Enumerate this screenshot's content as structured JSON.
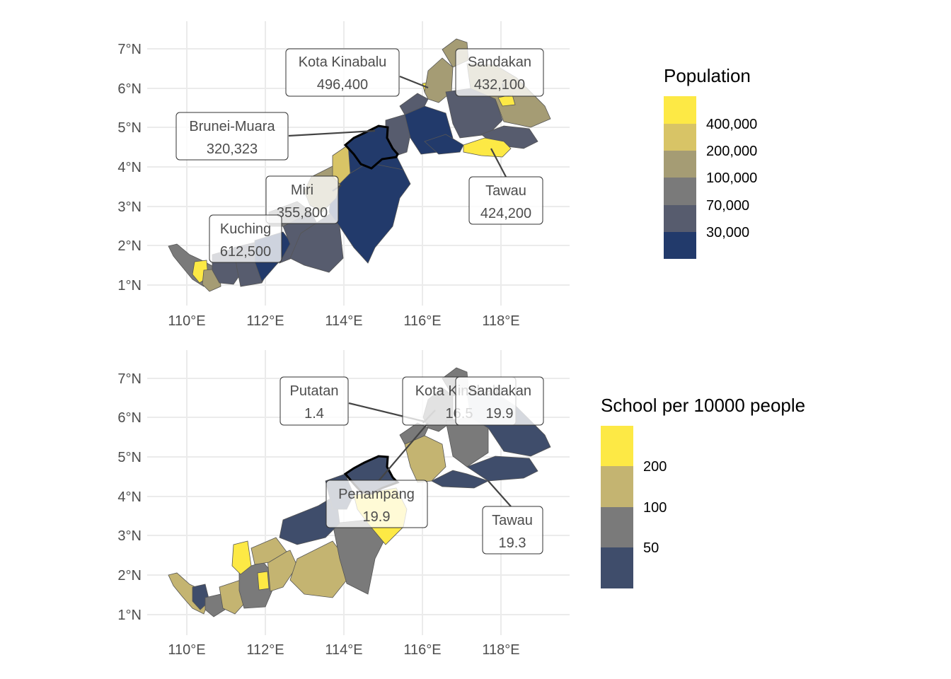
{
  "maps": [
    {
      "id": "population",
      "legend": {
        "title": "Population",
        "colors": [
          "#fde945",
          "#d8c466",
          "#a59c74",
          "#7a7a7a",
          "#575c6e",
          "#223a6b"
        ],
        "labels": [
          "400,000",
          "200,000",
          "100,000",
          "70,000",
          "30,000"
        ]
      },
      "callouts": [
        {
          "name": "Kota Kinabalu",
          "value": "496,400"
        },
        {
          "name": "Sandakan",
          "value": "432,100"
        },
        {
          "name": "Brunei-Muara",
          "value": "320,323"
        },
        {
          "name": "Miri",
          "value": "355,800"
        },
        {
          "name": "Tawau",
          "value": "424,200"
        },
        {
          "name": "Kuching",
          "value": "612,500"
        }
      ]
    },
    {
      "id": "schools",
      "legend": {
        "title": "School per 10000 people",
        "colors": [
          "#fde945",
          "#c4b471",
          "#7a7a7a",
          "#3f4d6b"
        ],
        "labels": [
          "200",
          "100",
          "50"
        ]
      },
      "callouts": [
        {
          "name": "Putatan",
          "value": "1.4"
        },
        {
          "name": "Kota Kinabalu",
          "value": "16.5"
        },
        {
          "name": "Sandakan",
          "value": "19.9"
        },
        {
          "name": "Penampang",
          "value": "19.9"
        },
        {
          "name": "Tawau",
          "value": "19.3"
        }
      ]
    }
  ],
  "axes": {
    "x_ticks": [
      "110°E",
      "112°E",
      "114°E",
      "116°E",
      "118°E"
    ],
    "y_ticks": [
      "7°N",
      "6°N",
      "5°N",
      "4°N",
      "3°N",
      "2°N",
      "1°N"
    ]
  }
}
